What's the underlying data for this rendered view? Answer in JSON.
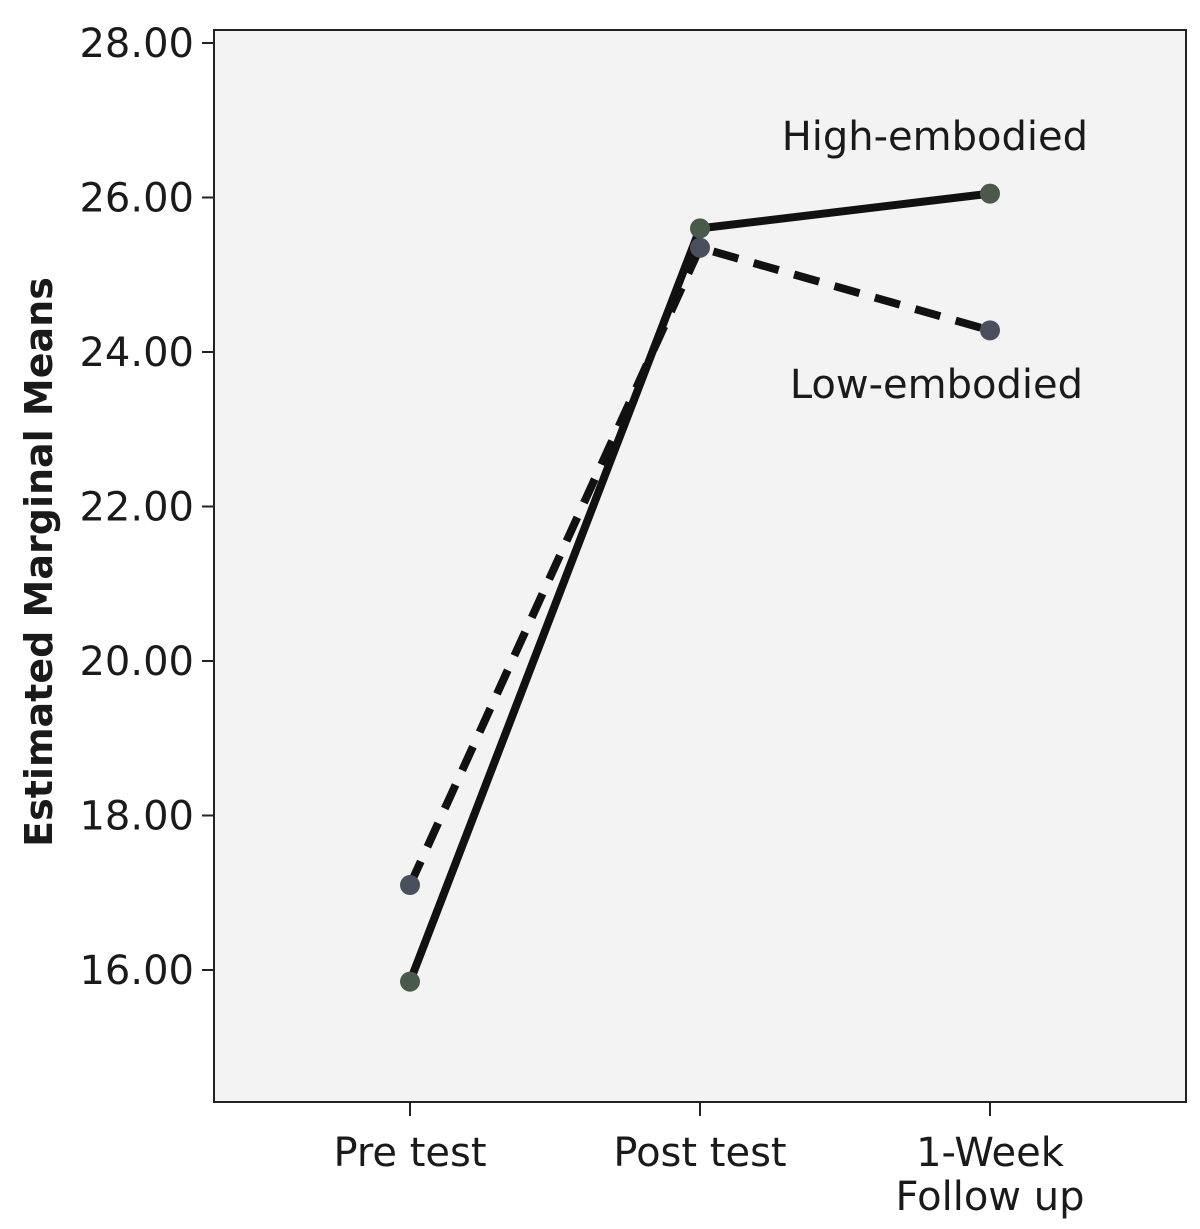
{
  "chart_data": {
    "type": "line",
    "ylabel": "Estimated Marginal Means",
    "xlabel": "",
    "ylim": [
      14.6,
      28.2
    ],
    "y_ticks": [
      "16.00",
      "18.00",
      "20.00",
      "22.00",
      "24.00",
      "26.00",
      "28.00"
    ],
    "y_tick_values": [
      16,
      18,
      20,
      22,
      24,
      26,
      28
    ],
    "categories": [
      [
        "Pre test"
      ],
      [
        "Post test"
      ],
      [
        "1-Week",
        "Follow up"
      ]
    ],
    "grid": false,
    "legend": "none",
    "series": [
      {
        "name": "High-embodied",
        "values": [
          15.85,
          25.6,
          26.05
        ],
        "style": "solid",
        "color": "#111111",
        "marker_color": "#4a5a4a"
      },
      {
        "name": "Low-embodied",
        "values": [
          17.1,
          25.35,
          24.28
        ],
        "style": "dashed",
        "color": "#111111",
        "marker_color": "#4a4f5e"
      }
    ],
    "plot_background": "#f3f3f3"
  }
}
